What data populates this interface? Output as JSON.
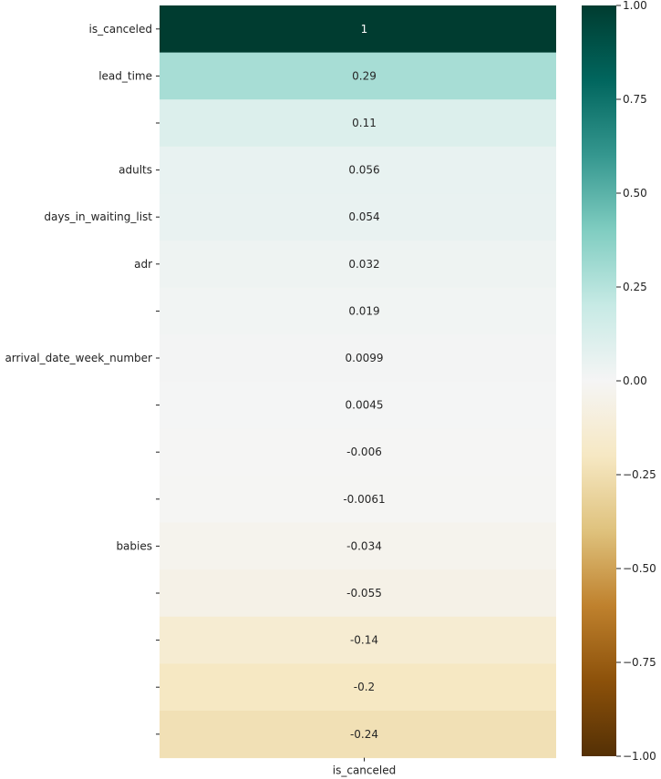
{
  "chart_data": {
    "type": "heatmap",
    "columns": [
      "is_canceled"
    ],
    "rows": [
      {
        "label": "is_canceled",
        "value": 1,
        "text": "1"
      },
      {
        "label": "lead_time",
        "value": 0.29,
        "text": "0.29"
      },
      {
        "label": "",
        "value": 0.11,
        "text": "0.11"
      },
      {
        "label": "adults",
        "value": 0.056,
        "text": "0.056"
      },
      {
        "label": "days_in_waiting_list",
        "value": 0.054,
        "text": "0.054"
      },
      {
        "label": "adr",
        "value": 0.032,
        "text": "0.032"
      },
      {
        "label": "",
        "value": 0.019,
        "text": "0.019"
      },
      {
        "label": "arrival_date_week_number",
        "value": 0.0099,
        "text": "0.0099"
      },
      {
        "label": "",
        "value": 0.0045,
        "text": "0.0045"
      },
      {
        "label": "",
        "value": -0.006,
        "text": "-0.006"
      },
      {
        "label": "",
        "value": -0.0061,
        "text": "-0.0061"
      },
      {
        "label": "babies",
        "value": -0.034,
        "text": "-0.034"
      },
      {
        "label": "",
        "value": -0.055,
        "text": "-0.055"
      },
      {
        "label": "",
        "value": -0.14,
        "text": "-0.14"
      },
      {
        "label": "",
        "value": -0.2,
        "text": "-0.2"
      },
      {
        "label": "",
        "value": -0.24,
        "text": "-0.24"
      }
    ],
    "colorbar": {
      "range": [
        -1.0,
        1.0
      ],
      "ticks": [
        "1.00",
        "0.75",
        "0.50",
        "0.25",
        "0.00",
        "−0.25",
        "−0.50",
        "−0.75",
        "−1.00"
      ],
      "tick_values": [
        1.0,
        0.75,
        0.5,
        0.25,
        0.0,
        -0.25,
        -0.5,
        -0.75,
        -1.0
      ],
      "colormap": "BrBG",
      "stops": [
        "#543005",
        "#8c510a",
        "#bf812d",
        "#dfc27d",
        "#f6e8c3",
        "#f5f5f5",
        "#c7eae5",
        "#80cdc1",
        "#35978f",
        "#01665e",
        "#003c30"
      ]
    }
  }
}
